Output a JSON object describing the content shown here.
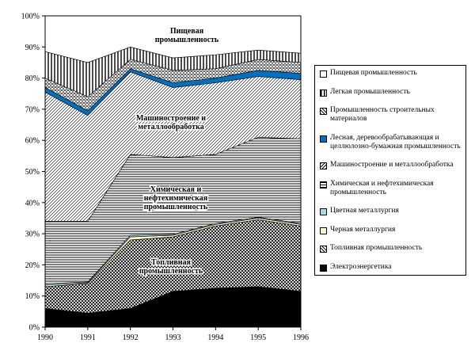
{
  "chart_data": {
    "type": "stacked-area",
    "x": [
      1990,
      1991,
      1992,
      1993,
      1994,
      1995,
      1996
    ],
    "xlim": [
      1990,
      1996
    ],
    "xticks": [
      1990,
      1991,
      1992,
      1993,
      1994,
      1995,
      1996
    ],
    "ylim": [
      0,
      100
    ],
    "yticks": [
      {
        "value": 0,
        "label": "0%"
      },
      {
        "value": 10,
        "label": "10%"
      },
      {
        "value": 20,
        "label": "20%"
      },
      {
        "value": 30,
        "label": "30%"
      },
      {
        "value": 40,
        "label": "40%"
      },
      {
        "value": 50,
        "label": "50%"
      },
      {
        "value": 60,
        "label": "60%"
      },
      {
        "value": 70,
        "label": "70%"
      },
      {
        "value": 80,
        "label": "80%"
      },
      {
        "value": 90,
        "label": "90%"
      },
      {
        "value": 100,
        "label": "100%"
      }
    ],
    "series": [
      {
        "name": "Электроэнергетика",
        "color": "#000000",
        "values": [
          6,
          4.5,
          6,
          11.5,
          12.5,
          13,
          11.5
        ]
      },
      {
        "name": "Топливная промышленность",
        "color": "#000000",
        "values": [
          7,
          9.5,
          22,
          17.5,
          20,
          21.5,
          21
        ]
      },
      {
        "name": "Черная металлургия",
        "color": "#ffffcc",
        "values": [
          0.5,
          0.3,
          1,
          0.5,
          0.5,
          0.5,
          0.5
        ]
      },
      {
        "name": "Цветная металлургия",
        "color": "#a6dce6",
        "values": [
          0.5,
          0.2,
          0.5,
          0.3,
          0.3,
          0.3,
          0.3
        ]
      },
      {
        "name": "Химическая и нефтехимическая промышленность",
        "color": "#000000",
        "values": [
          20,
          19.5,
          26,
          24.7,
          22.2,
          25.7,
          27.2
        ]
      },
      {
        "name": "Машиностроение и металлообработка",
        "color": "#000000",
        "values": [
          41.5,
          34,
          26.5,
          22.5,
          23,
          19.5,
          19
        ]
      },
      {
        "name": "Лесная, деревообрабатывающая и целлюлозно-бумажная промышленность",
        "color": "#0070c0",
        "values": [
          1.5,
          1.5,
          1,
          1.5,
          1.5,
          2,
          2
        ]
      },
      {
        "name": "Промышленность строительных материалов",
        "color": "#000000",
        "values": [
          3,
          4.5,
          3,
          4,
          3,
          3.5,
          3.5
        ]
      },
      {
        "name": "Легкая промышленность",
        "color": "#000000",
        "values": [
          8.5,
          11,
          4,
          4,
          4.5,
          3,
          3
        ]
      },
      {
        "name": "Пищевая промышленность",
        "color": "#ffffff",
        "values": [
          11.5,
          15,
          10,
          13.5,
          12.5,
          11,
          12
        ]
      }
    ],
    "annotations": [
      [
        "Пищевая",
        "промышленность"
      ],
      [
        "Машиностроение и",
        "металлообработка"
      ],
      [
        "Химическая и",
        "нефтехимическая",
        "промышленность"
      ],
      [
        "Топливная",
        "промышленность"
      ]
    ]
  }
}
